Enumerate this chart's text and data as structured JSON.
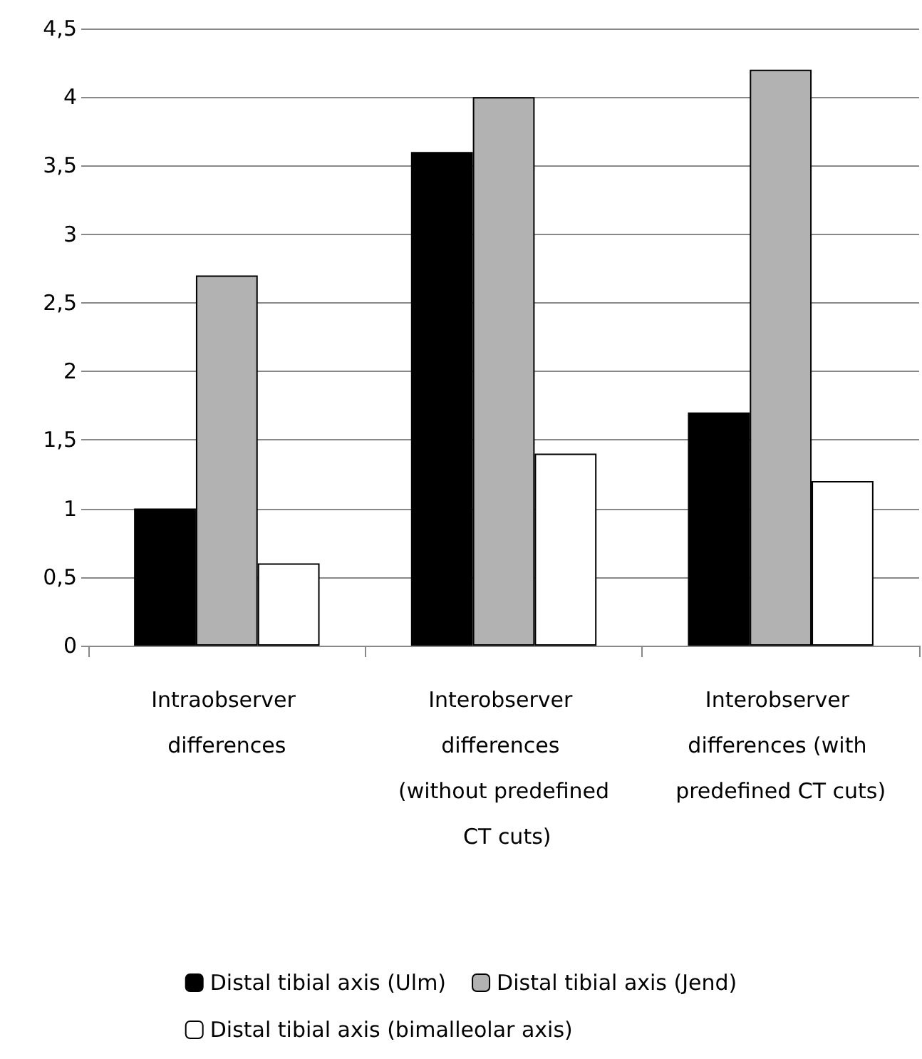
{
  "chart_data": {
    "type": "bar",
    "categories": [
      "Intraobserver differences",
      "Interobserver differences (without predefined CT cuts)",
      "Interobserver differences (with predefined CT cuts)"
    ],
    "series": [
      {
        "name": "Distal tibial axis (Ulm)",
        "color": "#000000",
        "values": [
          1.0,
          3.6,
          1.7
        ]
      },
      {
        "name": "Distal tibial axis (Jend)",
        "color": "#b2b2b2",
        "values": [
          2.7,
          4.0,
          4.2
        ]
      },
      {
        "name": "Distal tibial axis (bimalleolar axis)",
        "color": "#ffffff",
        "values": [
          0.6,
          1.4,
          1.2
        ]
      }
    ],
    "ylim": [
      0,
      4.5
    ],
    "yticks": [
      0,
      {
        "value": 0.5,
        "label": "0,5"
      },
      1,
      {
        "value": 1.5,
        "label": "1,5"
      },
      2,
      {
        "value": 2.5,
        "label": "2,5"
      },
      3,
      {
        "value": 3.5,
        "label": "3,5"
      },
      4,
      {
        "value": 4.5,
        "label": "4,5"
      }
    ],
    "grid": "y",
    "legend": "bottom"
  }
}
